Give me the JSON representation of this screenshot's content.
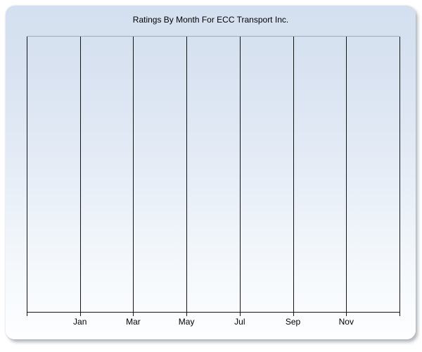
{
  "window": {
    "background_color": "#ffffff"
  },
  "panel": {
    "gradient_top_color": "#d4e0f0",
    "gradient_bottom_color": "#fdfeff"
  },
  "chart_data": {
    "type": "line",
    "title": "Ratings By Month For ECC Transport Inc.",
    "xlabel": "",
    "ylabel": "",
    "categories": [
      "Jan",
      "Mar",
      "May",
      "Jul",
      "Sep",
      "Nov"
    ],
    "series": [],
    "y_tick_labels": [],
    "grid": "vertical-only",
    "num_vertical_gridlines": 8,
    "legend": "none",
    "gridline_color": "#141414",
    "plot_gradient_top_color": "#c8d6ea",
    "plot_gradient_bottom_color": "#ffffff"
  }
}
